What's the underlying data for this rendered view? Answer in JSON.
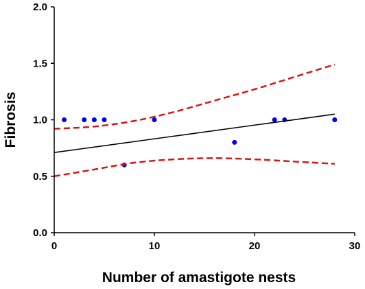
{
  "chart_data": {
    "type": "scatter",
    "xlabel": "Number of amastigote nests",
    "ylabel": "Fibrosis",
    "xlim": [
      0,
      30
    ],
    "ylim": [
      0,
      2.0
    ],
    "x_ticks": [
      "0",
      "10",
      "20",
      "30"
    ],
    "y_ticks": [
      "0.0",
      "0.5",
      "1.0",
      "1.5",
      "2.0"
    ],
    "grid": false,
    "series": [
      {
        "kind": "points",
        "color": "#0000ee",
        "points": [
          {
            "x": 1,
            "y": 1.0
          },
          {
            "x": 3,
            "y": 1.0
          },
          {
            "x": 4,
            "y": 1.0
          },
          {
            "x": 5,
            "y": 1.0
          },
          {
            "x": 7,
            "y": 0.6
          },
          {
            "x": 10,
            "y": 1.0
          },
          {
            "x": 18,
            "y": 0.8
          },
          {
            "x": 22,
            "y": 1.0
          },
          {
            "x": 23,
            "y": 1.0
          },
          {
            "x": 28,
            "y": 1.0
          }
        ]
      },
      {
        "kind": "regression-line",
        "color": "#000000",
        "points": [
          {
            "x": 0,
            "y": 0.71
          },
          {
            "x": 28,
            "y": 1.05
          }
        ]
      },
      {
        "kind": "upper-confidence-band",
        "color": "#dd1111",
        "points": [
          {
            "x": 0,
            "y": 0.92
          },
          {
            "x": 4,
            "y": 0.94
          },
          {
            "x": 8,
            "y": 0.99
          },
          {
            "x": 12,
            "y": 1.07
          },
          {
            "x": 16,
            "y": 1.17
          },
          {
            "x": 20,
            "y": 1.27
          },
          {
            "x": 24,
            "y": 1.38
          },
          {
            "x": 28,
            "y": 1.49
          }
        ]
      },
      {
        "kind": "lower-confidence-band",
        "color": "#dd1111",
        "points": [
          {
            "x": 0,
            "y": 0.5
          },
          {
            "x": 4,
            "y": 0.56
          },
          {
            "x": 8,
            "y": 0.62
          },
          {
            "x": 12,
            "y": 0.65
          },
          {
            "x": 16,
            "y": 0.66
          },
          {
            "x": 20,
            "y": 0.65
          },
          {
            "x": 24,
            "y": 0.63
          },
          {
            "x": 28,
            "y": 0.61
          }
        ]
      }
    ]
  }
}
